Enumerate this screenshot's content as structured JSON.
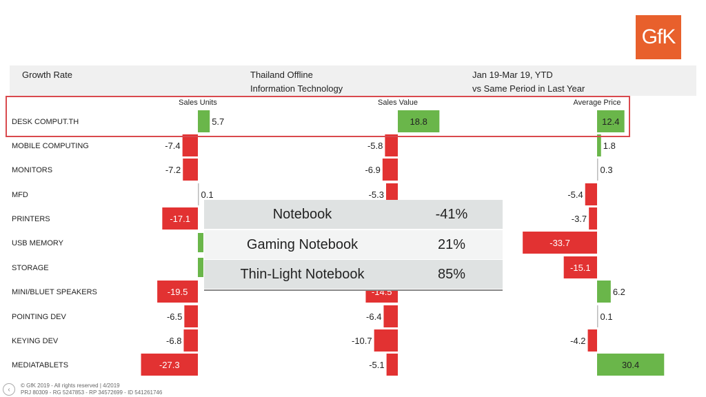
{
  "logo": {
    "text": "GfK",
    "color": "#e8602c"
  },
  "header": {
    "col1": "Growth Rate",
    "col2_line1": "Thailand Offline",
    "col2_line2": "Information Technology",
    "col3_line1": "Jan 19-Mar 19, YTD",
    "col3_line2": "vs Same Period in Last Year"
  },
  "chart_data": {
    "type": "bar",
    "orientation": "horizontal",
    "categories": [
      "DESK COMPUT.TH",
      "MOBILE COMPUTING",
      "MONITORS",
      "MFD",
      "PRINTERS",
      "USB MEMORY",
      "STORAGE",
      "MINI/BLUET SPEAKERS",
      "POINTING DEV",
      "KEYING DEV",
      "MEDIATABLETS"
    ],
    "highlighted_category": "DESK COMPUT.TH",
    "series": [
      {
        "name": "Sales Units",
        "values": [
          5.7,
          -7.4,
          -7.2,
          0.1,
          -17.1,
          null,
          null,
          -19.5,
          -6.5,
          -6.8,
          -27.3
        ]
      },
      {
        "name": "Sales Value",
        "values": [
          18.8,
          -5.8,
          -6.9,
          -5.3,
          null,
          null,
          null,
          -14.5,
          -6.4,
          -10.7,
          -5.1
        ]
      },
      {
        "name": "Average Price",
        "values": [
          12.4,
          1.8,
          0.3,
          -5.4,
          -3.7,
          -33.7,
          -15.1,
          6.2,
          0.1,
          -4.2,
          30.4
        ]
      }
    ],
    "colors": {
      "positive": "#6ab64a",
      "negative": "#e23232"
    }
  },
  "overlay": {
    "rows": [
      {
        "name": "Notebook",
        "pct": "-41%"
      },
      {
        "name": "Gaming Notebook",
        "pct": "21%"
      },
      {
        "name": "Thin-Light Notebook",
        "pct": "85%"
      }
    ],
    "shade": "#dfe2e2"
  },
  "footer": {
    "line1": "© GfK 2019 - All rights reserved | 4/2019",
    "line2": "PRJ 80309 - RG 5247853 - RP 34572699 - ID 541261746"
  }
}
